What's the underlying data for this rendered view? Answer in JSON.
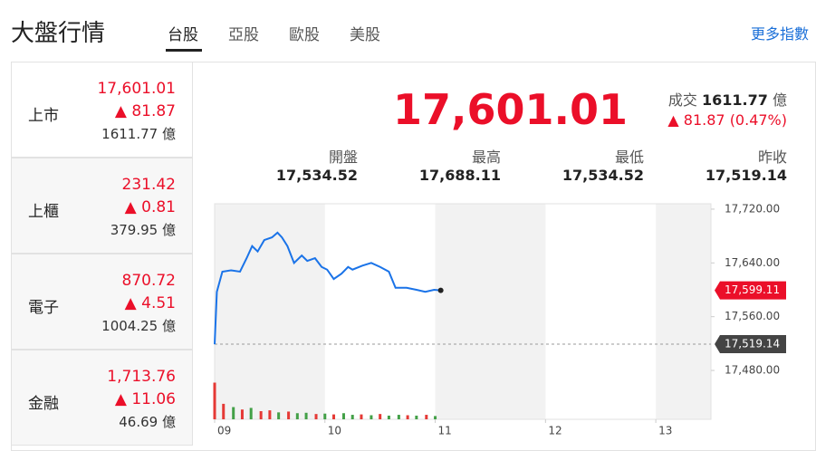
{
  "header": {
    "title": "大盤行情",
    "tabs": [
      "台股",
      "亞股",
      "歐股",
      "美股"
    ],
    "more": "更多指數"
  },
  "indices": [
    {
      "name": "上市",
      "price": "17,601.01",
      "change": 81.87,
      "volume": 1611.77,
      "unit": "億"
    },
    {
      "name": "上櫃",
      "price": "231.42",
      "change": 0.81,
      "volume": 379.95,
      "unit": "億"
    },
    {
      "name": "電子",
      "price": "870.72",
      "change": 4.51,
      "volume": 1004.25,
      "unit": "億"
    },
    {
      "name": "金融",
      "price": "1,713.76",
      "change": 11.06,
      "volume": 46.69,
      "unit": "億"
    }
  ],
  "summary": {
    "price": "17,601.01",
    "volume_label": "成交",
    "volume": 1611.77,
    "unit": "億",
    "change": 81.87,
    "pct": "(0.47%)",
    "stats": [
      {
        "label": "開盤",
        "value": "17,534.52"
      },
      {
        "label": "最高",
        "value": "17,688.11"
      },
      {
        "label": "最低",
        "value": "17,534.52"
      },
      {
        "label": "昨收",
        "value": "17,519.14"
      }
    ]
  },
  "chart_data": {
    "type": "line",
    "color": "#1a73e8",
    "x": [
      9.0,
      9.02,
      9.07,
      9.15,
      9.23,
      9.29,
      9.34,
      9.39,
      9.45,
      9.52,
      9.57,
      9.61,
      9.66,
      9.72,
      9.79,
      9.84,
      9.91,
      9.97,
      10.02,
      10.08,
      10.15,
      10.21,
      10.25,
      10.34,
      10.42,
      10.5,
      10.58,
      10.64,
      10.74,
      10.83,
      10.91,
      10.99,
      11.05
    ],
    "values": [
      17519,
      17597,
      17627,
      17629,
      17627,
      17647,
      17665,
      17657,
      17674,
      17678,
      17685,
      17678,
      17665,
      17640,
      17651,
      17643,
      17647,
      17634,
      17630,
      17616,
      17624,
      17634,
      17630,
      17636,
      17640,
      17634,
      17627,
      17603,
      17603,
      17600,
      17597,
      17600,
      17599.11
    ],
    "xlim": [
      9,
      13.5
    ],
    "ylim": [
      17472,
      17728
    ],
    "xticks": [
      {
        "value": 9,
        "label": "09"
      },
      10,
      11,
      12,
      13
    ],
    "yticks": [
      {
        "value": 17480,
        "label": "17,480.00"
      },
      {
        "value": 17560,
        "label": "17,560.00"
      },
      {
        "value": 17640,
        "label": "17,640.00"
      },
      {
        "value": 17720,
        "label": "17,720.00"
      }
    ],
    "last": {
      "value": 17599.11,
      "label": "17,599.11"
    },
    "reference": {
      "value": 17519.14,
      "label": "17,519.14"
    },
    "volume": {
      "axis": "y2",
      "x": [
        9,
        9.08,
        9.17,
        9.25,
        9.33,
        9.42,
        9.5,
        9.58,
        9.67,
        9.75,
        9.83,
        9.92,
        10,
        10.08,
        10.17,
        10.25,
        10.33,
        10.42,
        10.5,
        10.58,
        10.67,
        10.75,
        10.83,
        10.92,
        11
      ],
      "values": [
        90,
        38,
        30,
        24,
        28,
        20,
        22,
        17,
        19,
        15,
        16,
        13,
        14,
        12,
        15,
        11,
        12,
        10,
        13,
        9,
        11,
        10,
        9,
        11,
        8
      ],
      "colors": [
        "#e53935",
        "#e53935",
        "#43a047",
        "#e53935",
        "#43a047",
        "#e53935",
        "#e53935",
        "#43a047",
        "#e53935",
        "#43a047",
        "#43a047",
        "#e53935",
        "#43a047",
        "#e53935",
        "#43a047",
        "#43a047",
        "#e53935",
        "#43a047",
        "#e53935",
        "#43a047",
        "#43a047",
        "#e53935",
        "#43a047",
        "#e53935",
        "#43a047"
      ]
    },
    "y2lim": [
      0,
      100
    ]
  }
}
